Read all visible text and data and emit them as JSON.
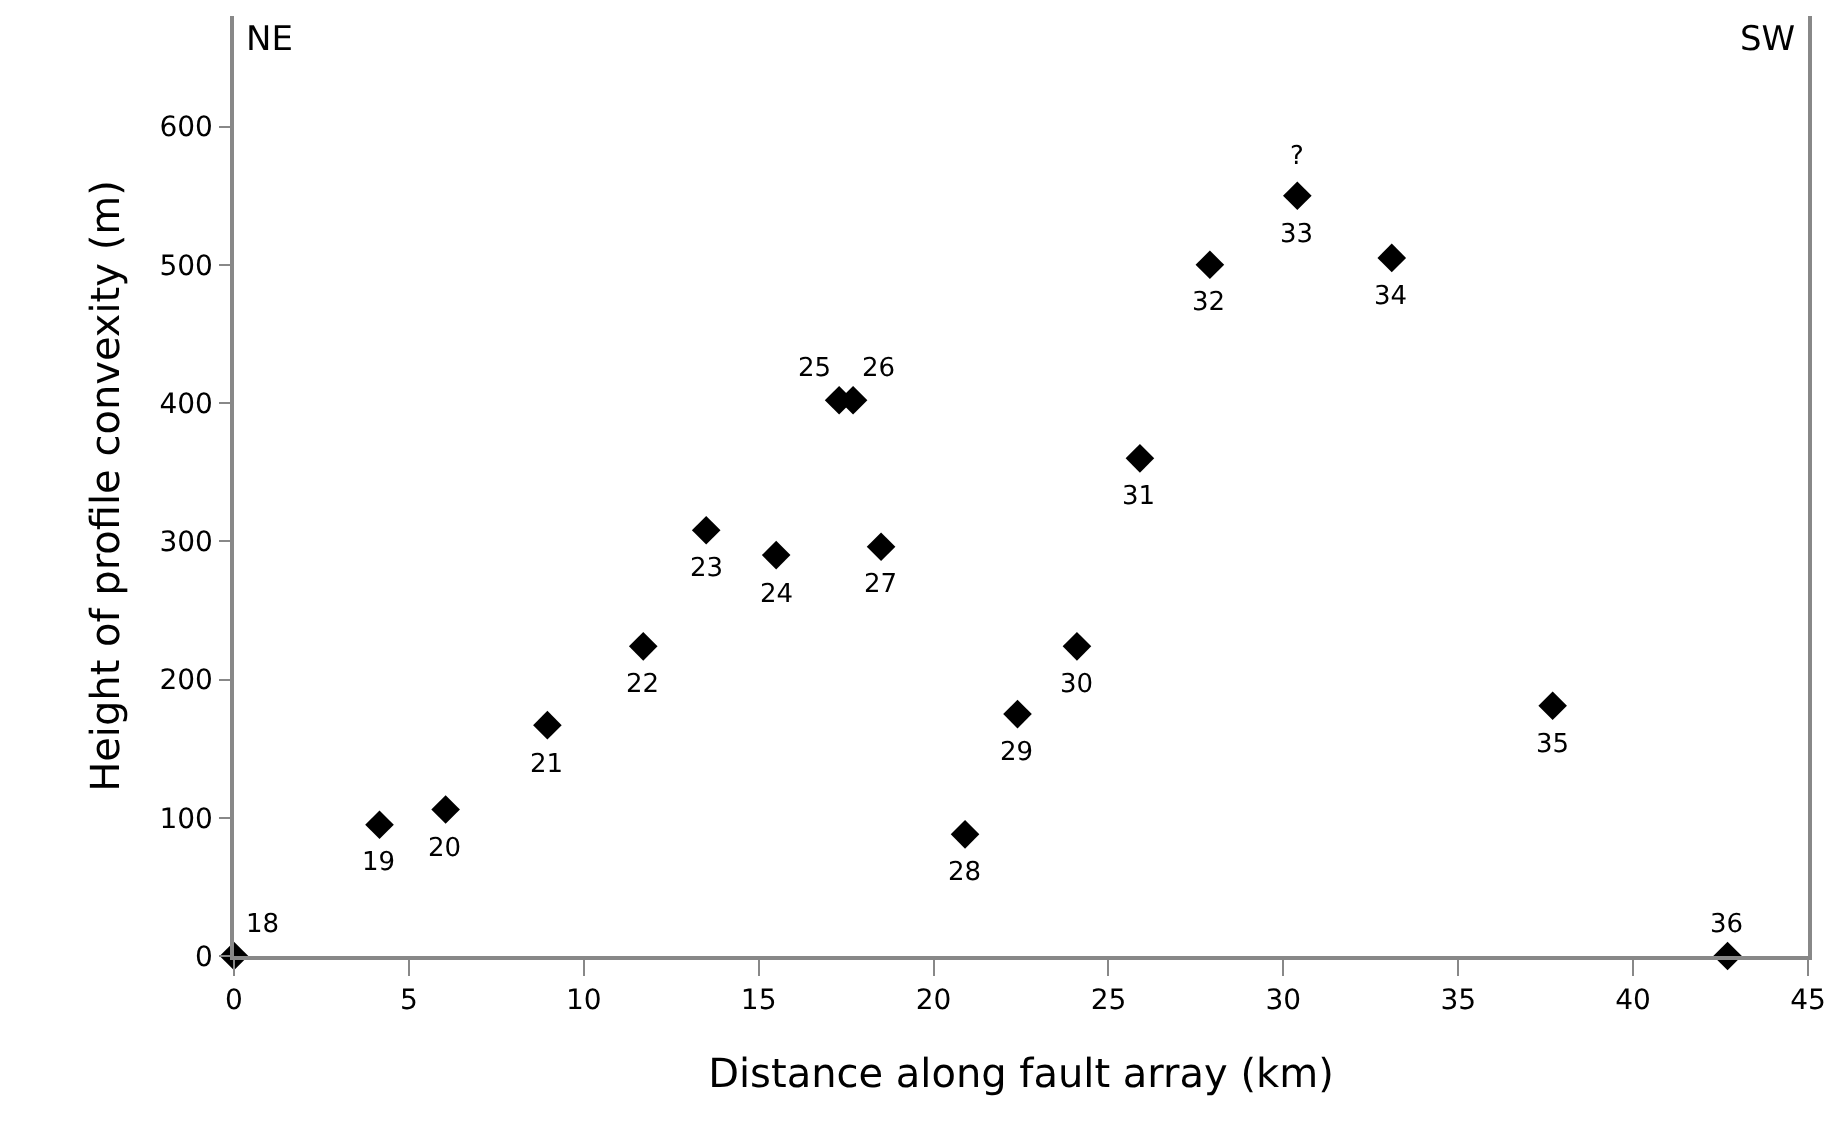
{
  "chart_data": {
    "type": "scatter",
    "xlabel": "Distance along fault array (km)",
    "ylabel": "Height of profile convexity (m)",
    "x": [
      0,
      4.16,
      6.05,
      8.96,
      11.7,
      13.5,
      15.5,
      17.3,
      17.7,
      18.5,
      20.9,
      22.4,
      24.1,
      25.9,
      27.9,
      30.4,
      33.1,
      37.7,
      42.7
    ],
    "series": [
      {
        "color": "#000000",
        "values": [
          0,
          95,
          106,
          167,
          224,
          308,
          290,
          402,
          402,
          296,
          88,
          175,
          224,
          360,
          500,
          550,
          505,
          181,
          0
        ]
      }
    ],
    "marker": "diamond",
    "xlim": [
      0,
      45
    ],
    "xticks": [
      0,
      5,
      10,
      15,
      20,
      25,
      30,
      35,
      40,
      45
    ],
    "ylim": [
      0,
      680
    ],
    "yticks": [
      0,
      100,
      200,
      300,
      400,
      500,
      600
    ],
    "annotations": [
      "NE",
      "SW",
      {
        "text": "18",
        "x": 0,
        "y": 0
      },
      {
        "text": "19",
        "x": 4.16,
        "y": 95
      },
      {
        "text": "20",
        "x": 6.05,
        "y": 106
      },
      {
        "text": "21",
        "x": 8.96,
        "y": 167
      },
      {
        "text": "22",
        "x": 11.7,
        "y": 224
      },
      {
        "text": "23",
        "x": 13.5,
        "y": 308
      },
      {
        "text": "24",
        "x": 15.5,
        "y": 290
      },
      {
        "text": "25",
        "x": 17.3,
        "y": 402
      },
      {
        "text": "26",
        "x": 17.7,
        "y": 402
      },
      {
        "text": "27",
        "x": 18.5,
        "y": 296
      },
      {
        "text": "28",
        "x": 20.9,
        "y": 88
      },
      {
        "text": "29",
        "x": 22.4,
        "y": 175
      },
      {
        "text": "30",
        "x": 24.1,
        "y": 224
      },
      {
        "text": "31",
        "x": 25.9,
        "y": 360
      },
      {
        "text": "32",
        "x": 27.9,
        "y": 500
      },
      {
        "text": "33",
        "x": 30.4,
        "y": 550
      },
      {
        "text": "?",
        "x": 30.4,
        "y": 550
      },
      {
        "text": "34",
        "x": 33.1,
        "y": 505
      },
      {
        "text": "35",
        "x": 37.7,
        "y": 181
      },
      {
        "text": "36",
        "x": 42.7,
        "y": 0
      }
    ]
  }
}
